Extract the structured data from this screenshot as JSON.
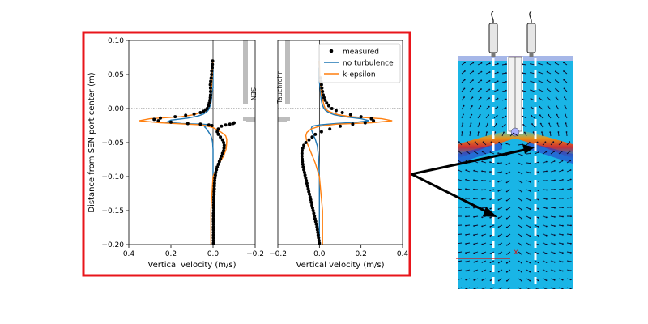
{
  "chart_data": [
    {
      "type": "line",
      "panel": "left",
      "xlabel": "Vertical velocity (m/s)",
      "ylabel": "Distance from SEN port center (m)",
      "xlim": [
        0.4,
        -0.2
      ],
      "ylim": [
        -0.2,
        0.1
      ],
      "x_reversed": true,
      "xticks": [
        0.4,
        0.2,
        0.0,
        -0.2
      ],
      "xtick_labels": [
        "0.4",
        "0.2",
        "0.0",
        "−0.2"
      ],
      "yticks": [
        -0.2,
        -0.15,
        -0.1,
        -0.05,
        0.0,
        0.05,
        0.1
      ],
      "ytick_labels": [
        "−0.20",
        "−0.15",
        "−0.10",
        "−0.05",
        "0.00",
        "0.05",
        "0.10"
      ],
      "annotation": "SEN",
      "reference_line_y": 0.0,
      "series": [
        {
          "name": "measured",
          "style": "points",
          "color": "#000000",
          "x": [
            -0.002,
            -0.002,
            -0.002,
            -0.002,
            -0.002,
            -0.002,
            -0.002,
            -0.002,
            -0.002,
            -0.002,
            -0.002,
            -0.002,
            -0.003,
            -0.003,
            -0.003,
            -0.003,
            -0.004,
            -0.004,
            -0.005,
            -0.005,
            -0.006,
            -0.006,
            -0.007,
            -0.008,
            -0.009,
            -0.011,
            -0.013,
            -0.016,
            -0.02,
            -0.025,
            -0.03,
            -0.035,
            -0.04,
            -0.045,
            -0.05,
            -0.052,
            -0.053,
            -0.05,
            -0.045,
            -0.035,
            -0.025,
            -0.02,
            -0.025,
            -0.04,
            -0.06,
            -0.08,
            -0.095,
            -0.1,
            0.005,
            0.02,
            0.06,
            0.12,
            0.2,
            0.26,
            0.28,
            0.25,
            0.18,
            0.13,
            0.09,
            0.06,
            0.045,
            0.035,
            0.028,
            0.022,
            0.018,
            0.015,
            0.013,
            0.012,
            0.012,
            0.012,
            0.013,
            0.011,
            0.009,
            0.007,
            0.006,
            0.004,
            0.003,
            0.002
          ],
          "y": [
            -0.198,
            -0.194,
            -0.19,
            -0.186,
            -0.182,
            -0.178,
            -0.174,
            -0.17,
            -0.166,
            -0.162,
            -0.158,
            -0.154,
            -0.15,
            -0.146,
            -0.142,
            -0.138,
            -0.134,
            -0.13,
            -0.126,
            -0.122,
            -0.118,
            -0.114,
            -0.11,
            -0.106,
            -0.102,
            -0.098,
            -0.094,
            -0.09,
            -0.086,
            -0.082,
            -0.078,
            -0.074,
            -0.07,
            -0.066,
            -0.062,
            -0.058,
            -0.054,
            -0.05,
            -0.046,
            -0.042,
            -0.038,
            -0.034,
            -0.03,
            -0.026,
            -0.024,
            -0.023,
            -0.022,
            -0.021,
            -0.025,
            -0.024,
            -0.023,
            -0.022,
            -0.02,
            -0.018,
            -0.016,
            -0.014,
            -0.012,
            -0.01,
            -0.008,
            -0.006,
            -0.004,
            -0.002,
            0.0,
            0.004,
            0.008,
            0.012,
            0.016,
            0.02,
            0.025,
            0.03,
            0.035,
            0.04,
            0.045,
            0.05,
            0.055,
            0.06,
            0.065,
            0.07
          ]
        },
        {
          "name": "no turbulence",
          "style": "line",
          "color": "#1f77b4",
          "x": [
            0.0,
            0.0,
            0.0,
            0.0,
            0.0,
            0.001,
            0.002,
            0.005,
            0.01,
            0.02,
            0.03,
            0.04,
            0.03,
            0.0,
            0.05,
            0.15,
            0.22,
            0.2,
            0.12,
            0.07,
            0.045,
            0.03,
            0.022,
            0.016,
            0.012,
            0.009,
            0.007,
            0.006,
            0.005,
            0.0,
            0.0
          ],
          "y": [
            -0.2,
            -0.15,
            -0.1,
            -0.08,
            -0.06,
            -0.055,
            -0.05,
            -0.045,
            -0.04,
            -0.035,
            -0.03,
            -0.027,
            -0.025,
            -0.024,
            -0.023,
            -0.022,
            -0.02,
            -0.017,
            -0.014,
            -0.011,
            -0.008,
            -0.005,
            -0.002,
            0.002,
            0.006,
            0.01,
            0.015,
            0.02,
            0.025,
            0.03,
            0.06
          ]
        },
        {
          "name": "k-epsilon",
          "style": "line",
          "color": "#ff7f0e",
          "x": [
            0.01,
            0.01,
            0.0,
            -0.02,
            -0.05,
            -0.062,
            -0.065,
            -0.065,
            -0.06,
            -0.04,
            0.0,
            0.05,
            0.25,
            0.35,
            0.3,
            0.15,
            0.09,
            0.06,
            0.045,
            0.035,
            0.028,
            0.022,
            0.018,
            0.014,
            0.01,
            0.007,
            0.005,
            0.003,
            0.002,
            0.0
          ],
          "y": [
            -0.2,
            -0.15,
            -0.1,
            -0.085,
            -0.07,
            -0.06,
            -0.05,
            -0.045,
            -0.04,
            -0.035,
            -0.028,
            -0.024,
            -0.021,
            -0.018,
            -0.015,
            -0.012,
            -0.009,
            -0.006,
            -0.004,
            -0.002,
            0.0,
            0.005,
            0.01,
            0.015,
            0.02,
            0.03,
            0.04,
            0.05,
            0.06,
            0.07
          ]
        }
      ]
    },
    {
      "type": "line",
      "panel": "right",
      "xlabel": "Vertical velocity (m/s)",
      "xlim": [
        -0.2,
        0.4
      ],
      "ylim": [
        -0.2,
        0.1
      ],
      "xticks": [
        -0.2,
        0.0,
        0.2,
        0.4
      ],
      "xtick_labels": [
        "−0.2",
        "0.0",
        "0.2",
        "0.4"
      ],
      "annotation": "Tauchrohr",
      "legend": "top-right",
      "legend_entries": [
        "measured",
        "no turbulence",
        "k-epsilon"
      ],
      "reference_line_y": 0.0,
      "series": [
        {
          "name": "measured",
          "style": "points",
          "color": "#000000",
          "x": [
            0.0,
            -0.002,
            -0.004,
            -0.006,
            -0.008,
            -0.01,
            -0.012,
            -0.015,
            -0.018,
            -0.021,
            -0.024,
            -0.027,
            -0.03,
            -0.033,
            -0.036,
            -0.039,
            -0.042,
            -0.045,
            -0.048,
            -0.051,
            -0.054,
            -0.057,
            -0.06,
            -0.063,
            -0.066,
            -0.069,
            -0.072,
            -0.075,
            -0.078,
            -0.08,
            -0.082,
            -0.083,
            -0.084,
            -0.084,
            -0.083,
            -0.08,
            -0.075,
            -0.065,
            -0.05,
            -0.035,
            -0.02,
            0.01,
            0.05,
            0.1,
            0.16,
            0.22,
            0.26,
            0.25,
            0.2,
            0.15,
            0.11,
            0.08,
            0.06,
            0.045,
            0.035,
            0.028,
            0.022,
            0.018,
            0.015,
            0.012,
            0.01,
            0.008,
            0.006
          ],
          "y": [
            -0.198,
            -0.194,
            -0.19,
            -0.186,
            -0.182,
            -0.178,
            -0.174,
            -0.17,
            -0.166,
            -0.162,
            -0.158,
            -0.154,
            -0.15,
            -0.146,
            -0.142,
            -0.138,
            -0.134,
            -0.13,
            -0.126,
            -0.122,
            -0.118,
            -0.114,
            -0.11,
            -0.106,
            -0.102,
            -0.098,
            -0.094,
            -0.09,
            -0.086,
            -0.082,
            -0.078,
            -0.074,
            -0.07,
            -0.066,
            -0.062,
            -0.058,
            -0.054,
            -0.05,
            -0.046,
            -0.042,
            -0.038,
            -0.034,
            -0.03,
            -0.026,
            -0.023,
            -0.021,
            -0.018,
            -0.015,
            -0.012,
            -0.009,
            -0.006,
            -0.003,
            0.0,
            0.004,
            0.008,
            0.012,
            0.016,
            0.02,
            0.025,
            0.03,
            0.035,
            0.04,
            0.045
          ]
        },
        {
          "name": "no turbulence",
          "style": "line",
          "color": "#1f77b4",
          "x": [
            0.0,
            0.0,
            0.0,
            -0.005,
            -0.01,
            -0.02,
            -0.03,
            -0.04,
            -0.035,
            0.0,
            0.08,
            0.18,
            0.24,
            0.2,
            0.12,
            0.07,
            0.045,
            0.03,
            0.022,
            0.016,
            0.012,
            0.009,
            0.007,
            0.005,
            0.003,
            0.0,
            0.0
          ],
          "y": [
            -0.2,
            -0.15,
            -0.1,
            -0.07,
            -0.055,
            -0.045,
            -0.038,
            -0.03,
            -0.026,
            -0.024,
            -0.022,
            -0.02,
            -0.018,
            -0.015,
            -0.012,
            -0.009,
            -0.006,
            -0.003,
            0.0,
            0.004,
            0.008,
            0.012,
            0.018,
            0.025,
            0.03,
            0.04,
            0.06
          ]
        },
        {
          "name": "k-epsilon",
          "style": "line",
          "color": "#ff7f0e",
          "x": [
            0.015,
            0.015,
            0.0,
            -0.02,
            -0.04,
            -0.06,
            -0.065,
            -0.06,
            -0.04,
            0.0,
            0.08,
            0.25,
            0.35,
            0.3,
            0.15,
            0.09,
            0.06,
            0.045,
            0.035,
            0.028,
            0.022,
            0.018,
            0.014,
            0.01,
            0.007,
            0.005,
            0.003,
            0.002,
            0.0
          ],
          "y": [
            -0.2,
            -0.15,
            -0.1,
            -0.08,
            -0.065,
            -0.05,
            -0.04,
            -0.035,
            -0.03,
            -0.026,
            -0.023,
            -0.021,
            -0.018,
            -0.015,
            -0.012,
            -0.009,
            -0.006,
            -0.004,
            -0.002,
            0.0,
            0.005,
            0.01,
            0.015,
            0.02,
            0.03,
            0.04,
            0.05,
            0.06,
            0.07
          ]
        }
      ]
    }
  ],
  "colors": {
    "frame": "#e8151b",
    "arrow": "#000000",
    "marker_red": "#d01818",
    "sen_gray": "#bdbdbd",
    "flow_field_bg": "#19b5e6"
  },
  "simulation": {
    "marker_label": "x"
  }
}
